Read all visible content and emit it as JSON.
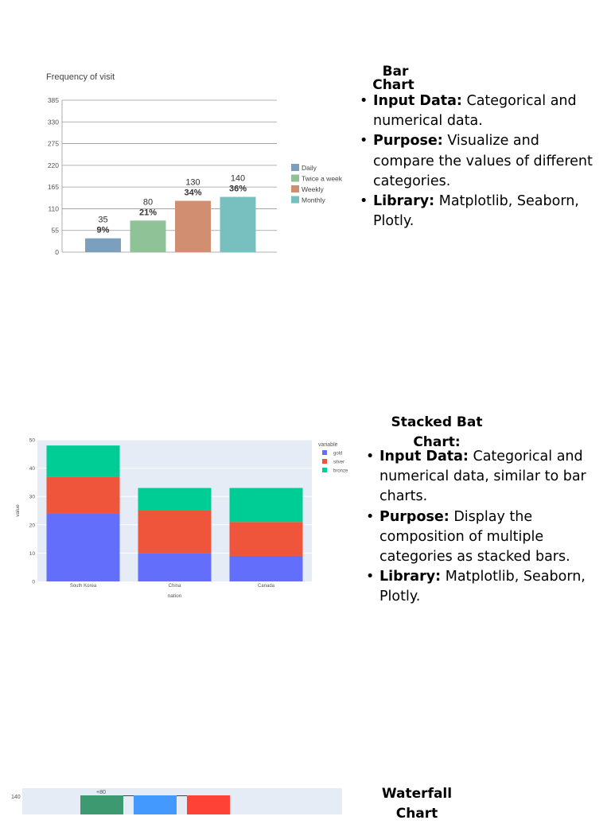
{
  "sections": [
    {
      "heading": "Bar Chart",
      "heading_lines": [
        "Bar",
        "Chart"
      ],
      "bullets": [
        {
          "label": "Input Data:",
          "text": " Categorical and numerical data."
        },
        {
          "label": "Purpose:",
          "text": " Visualize and compare the values of different categories."
        },
        {
          "label": "Library:",
          "text": " Matplotlib, Seaborn, Plotly."
        }
      ]
    },
    {
      "heading": "Stacked Bat Chart:",
      "heading_lines": [
        "Stacked Bat",
        "Chart:"
      ],
      "bullets": [
        {
          "label": "Input Data:",
          "text": " Categorical and numerical data, similar to bar charts."
        },
        {
          "label": "Purpose:",
          "text": " Display the composition of multiple categories as stacked bars."
        },
        {
          "label": "Library:",
          "text": " Matplotlib, Seaborn, Plotly."
        }
      ]
    },
    {
      "heading": "Waterfall Chart",
      "heading_lines": [
        "Waterfall",
        "Chart"
      ],
      "bullets": []
    }
  ],
  "chart_data": [
    {
      "type": "bar",
      "title": "Frequency of visit",
      "categories": [
        "Daily",
        "Twice a week",
        "Weekly",
        "Monthly"
      ],
      "values": [
        35,
        80,
        130,
        140
      ],
      "percent_labels": [
        "9%",
        "21%",
        "34%",
        "36%"
      ],
      "colors": [
        "#7b9fbd",
        "#8fc397",
        "#d28e71",
        "#78bfbf"
      ],
      "yticks": [
        0,
        55,
        110,
        165,
        220,
        275,
        330,
        385
      ],
      "ylim": [
        0,
        385
      ],
      "legend": "right",
      "grid": true
    },
    {
      "type": "bar",
      "stacked": true,
      "categories": [
        "South Korea",
        "China",
        "Canada"
      ],
      "series": [
        {
          "name": "gold",
          "values": [
            24,
            10,
            9
          ],
          "color": "#636efa"
        },
        {
          "name": "silver",
          "values": [
            13,
            15,
            12
          ],
          "color": "#ef553b"
        },
        {
          "name": "bronze",
          "values": [
            11,
            8,
            12
          ],
          "color": "#00cc96"
        }
      ],
      "xlabel": "nation",
      "ylabel": "value",
      "legend_title": "variable",
      "yticks": [
        0,
        10,
        20,
        30,
        40,
        50
      ],
      "ylim": [
        0,
        50
      ],
      "legend": "right",
      "grid": true
    },
    {
      "type": "bar",
      "partial": true,
      "ytick_labels": [
        "140"
      ],
      "annotations": [
        "+80"
      ],
      "colors": [
        "#3d9970",
        "#4499ff",
        "#ff4136",
        "#cccccc"
      ]
    }
  ]
}
